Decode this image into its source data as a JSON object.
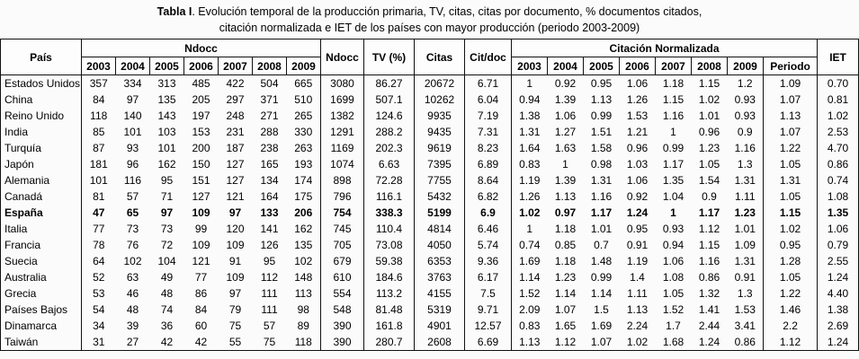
{
  "title": {
    "bold": "Tabla I",
    "line1": ". Evolución temporal de la producción primaria, TV, citas, citas por documento, % documentos citados,",
    "line2": "citación normalizada e IET de los países con mayor producción (periodo 2003-2009)"
  },
  "table": {
    "headers": {
      "pais": "País",
      "ndocc_group": "Ndocc",
      "ndocc_total": "Ndocc",
      "tv": "TV (%)",
      "citas": "Citas",
      "cit_doc": "Cit/doc",
      "cn_group": "Citación Normalizada",
      "periodo": "Periodo",
      "iet": "IET",
      "years": [
        "2003",
        "2004",
        "2005",
        "2006",
        "2007",
        "2008",
        "2009"
      ]
    },
    "rows": [
      {
        "pais": "Estados Unidos",
        "bold": false,
        "ndocc": [
          "357",
          "334",
          "313",
          "485",
          "422",
          "504",
          "665"
        ],
        "ndocc_total": "3080",
        "tv": "86.27",
        "citas": "20672",
        "cit_doc": "6.71",
        "cn": [
          "1",
          "0.92",
          "0.95",
          "1.06",
          "1.18",
          "1.15",
          "1.2"
        ],
        "periodo": "1.09",
        "iet": "0.70"
      },
      {
        "pais": "China",
        "bold": false,
        "ndocc": [
          "84",
          "97",
          "135",
          "205",
          "297",
          "371",
          "510"
        ],
        "ndocc_total": "1699",
        "tv": "507.1",
        "citas": "10262",
        "cit_doc": "6.04",
        "cn": [
          "0.94",
          "1.39",
          "1.13",
          "1.26",
          "1.15",
          "1.02",
          "0.93"
        ],
        "periodo": "1.07",
        "iet": "0.81"
      },
      {
        "pais": "Reino Unido",
        "bold": false,
        "ndocc": [
          "118",
          "140",
          "143",
          "197",
          "248",
          "271",
          "265"
        ],
        "ndocc_total": "1382",
        "tv": "124.6",
        "citas": "9935",
        "cit_doc": "7.19",
        "cn": [
          "1.38",
          "1.06",
          "0.99",
          "1.53",
          "1.16",
          "1.01",
          "0.93"
        ],
        "periodo": "1.13",
        "iet": "1.02"
      },
      {
        "pais": "India",
        "bold": false,
        "ndocc": [
          "85",
          "101",
          "103",
          "153",
          "231",
          "288",
          "330"
        ],
        "ndocc_total": "1291",
        "tv": "288.2",
        "citas": "9435",
        "cit_doc": "7.31",
        "cn": [
          "1.31",
          "1.27",
          "1.51",
          "1.21",
          "1",
          "0.96",
          "0.9"
        ],
        "periodo": "1.07",
        "iet": "2.53"
      },
      {
        "pais": "Turquía",
        "bold": false,
        "ndocc": [
          "87",
          "93",
          "101",
          "200",
          "187",
          "238",
          "263"
        ],
        "ndocc_total": "1169",
        "tv": "202.3",
        "citas": "9619",
        "cit_doc": "8.23",
        "cn": [
          "1.64",
          "1.63",
          "1.58",
          "0.96",
          "0.99",
          "1.23",
          "1.16"
        ],
        "periodo": "1.22",
        "iet": "4.70"
      },
      {
        "pais": "Japón",
        "bold": false,
        "ndocc": [
          "181",
          "96",
          "162",
          "150",
          "127",
          "165",
          "193"
        ],
        "ndocc_total": "1074",
        "tv": "6.63",
        "citas": "7395",
        "cit_doc": "6.89",
        "cn": [
          "0.83",
          "1",
          "0.98",
          "1.03",
          "1.17",
          "1.05",
          "1.3"
        ],
        "periodo": "1.05",
        "iet": "0.86"
      },
      {
        "pais": "Alemania",
        "bold": false,
        "ndocc": [
          "101",
          "116",
          "95",
          "151",
          "127",
          "134",
          "174"
        ],
        "ndocc_total": "898",
        "tv": "72.28",
        "citas": "7755",
        "cit_doc": "8.64",
        "cn": [
          "1.19",
          "1.39",
          "1.31",
          "1.06",
          "1.35",
          "1.54",
          "1.31"
        ],
        "periodo": "1.31",
        "iet": "0.74"
      },
      {
        "pais": "Canadá",
        "bold": false,
        "ndocc": [
          "81",
          "57",
          "71",
          "127",
          "121",
          "164",
          "175"
        ],
        "ndocc_total": "796",
        "tv": "116.1",
        "citas": "5432",
        "cit_doc": "6.82",
        "cn": [
          "1.26",
          "1.13",
          "1.16",
          "0.92",
          "1.04",
          "0.9",
          "1.11"
        ],
        "periodo": "1.05",
        "iet": "1.08"
      },
      {
        "pais": "España",
        "bold": true,
        "ndocc": [
          "47",
          "65",
          "97",
          "109",
          "97",
          "133",
          "206"
        ],
        "ndocc_total": "754",
        "tv": "338.3",
        "citas": "5199",
        "cit_doc": "6.9",
        "cn": [
          "1.02",
          "0.97",
          "1.17",
          "1.24",
          "1",
          "1.17",
          "1.23"
        ],
        "periodo": "1.15",
        "iet": "1.35"
      },
      {
        "pais": "Italia",
        "bold": false,
        "ndocc": [
          "77",
          "73",
          "73",
          "99",
          "120",
          "141",
          "162"
        ],
        "ndocc_total": "745",
        "tv": "110.4",
        "citas": "4814",
        "cit_doc": "6.46",
        "cn": [
          "1",
          "1.18",
          "1.01",
          "0.95",
          "0.93",
          "1.12",
          "1.01"
        ],
        "periodo": "1.02",
        "iet": "1.06"
      },
      {
        "pais": "Francia",
        "bold": false,
        "ndocc": [
          "78",
          "76",
          "72",
          "109",
          "109",
          "126",
          "135"
        ],
        "ndocc_total": "705",
        "tv": "73.08",
        "citas": "4050",
        "cit_doc": "5.74",
        "cn": [
          "0.74",
          "0.85",
          "0.7",
          "0.91",
          "0.94",
          "1.15",
          "1.09"
        ],
        "periodo": "0.95",
        "iet": "0.79"
      },
      {
        "pais": "Suecia",
        "bold": false,
        "ndocc": [
          "64",
          "102",
          "104",
          "121",
          "91",
          "95",
          "102"
        ],
        "ndocc_total": "679",
        "tv": "59.38",
        "citas": "6353",
        "cit_doc": "9.36",
        "cn": [
          "1.69",
          "1.18",
          "1.48",
          "1.19",
          "1.06",
          "1.16",
          "1.31"
        ],
        "periodo": "1.28",
        "iet": "2.55"
      },
      {
        "pais": "Australia",
        "bold": false,
        "ndocc": [
          "52",
          "63",
          "49",
          "77",
          "109",
          "112",
          "148"
        ],
        "ndocc_total": "610",
        "tv": "184.6",
        "citas": "3763",
        "cit_doc": "6.17",
        "cn": [
          "1.14",
          "1.23",
          "0.99",
          "1.4",
          "1.08",
          "0.86",
          "0.91"
        ],
        "periodo": "1.05",
        "iet": "1.24"
      },
      {
        "pais": "Grecia",
        "bold": false,
        "ndocc": [
          "53",
          "46",
          "48",
          "86",
          "97",
          "111",
          "113"
        ],
        "ndocc_total": "554",
        "tv": "113.2",
        "citas": "4155",
        "cit_doc": "7.5",
        "cn": [
          "1.52",
          "1.14",
          "1.14",
          "1.11",
          "1.05",
          "1.32",
          "1.3"
        ],
        "periodo": "1.22",
        "iet": "4.40"
      },
      {
        "pais": "Países Bajos",
        "bold": false,
        "ndocc": [
          "54",
          "48",
          "74",
          "84",
          "79",
          "111",
          "98"
        ],
        "ndocc_total": "548",
        "tv": "81.48",
        "citas": "5319",
        "cit_doc": "9.71",
        "cn": [
          "2.09",
          "1.07",
          "1.5",
          "1.13",
          "1.52",
          "1.41",
          "1.53"
        ],
        "periodo": "1.46",
        "iet": "1.38"
      },
      {
        "pais": "Dinamarca",
        "bold": false,
        "ndocc": [
          "34",
          "39",
          "36",
          "60",
          "75",
          "57",
          "89"
        ],
        "ndocc_total": "390",
        "tv": "161.8",
        "citas": "4901",
        "cit_doc": "12.57",
        "cn": [
          "0.83",
          "1.65",
          "1.69",
          "2.24",
          "1.7",
          "2.44",
          "3.41"
        ],
        "periodo": "2.2",
        "iet": "2.69"
      },
      {
        "pais": "Taiwán",
        "bold": false,
        "ndocc": [
          "31",
          "27",
          "42",
          "42",
          "55",
          "75",
          "118"
        ],
        "ndocc_total": "390",
        "tv": "280.7",
        "citas": "2608",
        "cit_doc": "6.69",
        "cn": [
          "1.13",
          "1.12",
          "1.07",
          "1.02",
          "1.68",
          "1.24",
          "0.86"
        ],
        "periodo": "1.12",
        "iet": "1.24"
      }
    ]
  }
}
